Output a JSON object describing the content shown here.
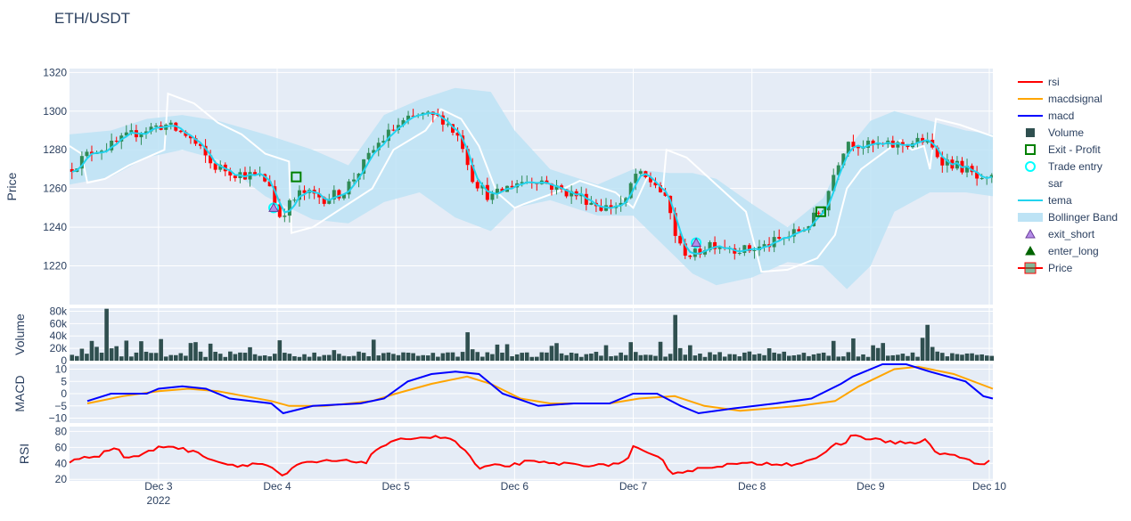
{
  "chart_data": {
    "type": "candlestick",
    "title": "ETH/USDT",
    "x_ticks": [
      "Dec 3",
      "Dec 4",
      "Dec 5",
      "Dec 6",
      "Dec 7",
      "Dec 8",
      "Dec 9",
      "Dec 10"
    ],
    "x_year_label": "2022",
    "x_range_days": [
      2.25,
      10.03
    ],
    "grid": true,
    "legend_position": "right",
    "panels": [
      {
        "key": "price",
        "ylabel": "Price",
        "yrange": [
          1200,
          1322
        ],
        "ticks": [
          1220,
          1240,
          1260,
          1280,
          1300,
          1320
        ],
        "tick_labels": [
          "1220",
          "1240",
          "1260",
          "1280",
          "1300",
          "1320"
        ]
      },
      {
        "key": "volume",
        "ylabel": "Volume",
        "yrange": [
          0,
          85000
        ],
        "ticks": [
          0,
          20000,
          40000,
          60000,
          80000
        ],
        "tick_labels": [
          "0",
          "20k",
          "40k",
          "60k",
          "80k"
        ]
      },
      {
        "key": "macd",
        "ylabel": "MACD",
        "yrange": [
          -12,
          12
        ],
        "ticks": [
          -10,
          -5,
          0,
          5,
          10
        ],
        "tick_labels": [
          "−10",
          "−5",
          "0",
          "5",
          "10"
        ]
      },
      {
        "key": "rsi",
        "ylabel": "RSI",
        "yrange": [
          18,
          86
        ],
        "ticks": [
          20,
          40,
          60,
          80
        ],
        "tick_labels": [
          "20",
          "40",
          "60",
          "80"
        ]
      }
    ],
    "legend": [
      {
        "name": "rsi",
        "color": "#ff0000",
        "symbol": "line"
      },
      {
        "name": "macdsignal",
        "color": "#ffa500",
        "symbol": "line"
      },
      {
        "name": "macd",
        "color": "#0000ff",
        "symbol": "line"
      },
      {
        "name": "Volume",
        "color": "#2f4f4f",
        "symbol": "square"
      },
      {
        "name": "Exit - Profit",
        "color": "#008000",
        "symbol": "square-open"
      },
      {
        "name": "Trade entry",
        "color": "#00ffff",
        "symbol": "circle-open"
      },
      {
        "name": "sar",
        "color": "#ffffff",
        "symbol": "line"
      },
      {
        "name": "tema",
        "color": "#22d3ee",
        "symbol": "line"
      },
      {
        "name": "Bollinger Band",
        "color": "#bde3f5",
        "symbol": "band"
      },
      {
        "name": "exit_short",
        "color": "#9b59b6",
        "symbol": "triangle"
      },
      {
        "name": "enter_long",
        "color": "#006400",
        "symbol": "triangle"
      },
      {
        "name": "Price",
        "color": "#2e8b57",
        "symbol": "candle"
      }
    ],
    "colors": {
      "plot_bg": "#e5ecf6",
      "grid": "#ffffff",
      "up": "#2e8b57",
      "down": "#ff0000",
      "volume": "#2f4f4f",
      "tema": "#22d3ee",
      "sar": "#ffffff",
      "bb": "#bde3f5",
      "macd": "#0000ff",
      "signal": "#ffa500",
      "rsi": "#ff0000"
    },
    "price_path": [
      [
        2.25,
        1270
      ],
      [
        2.45,
        1280
      ],
      [
        2.6,
        1282
      ],
      [
        2.75,
        1287
      ],
      [
        2.85,
        1290
      ],
      [
        3.05,
        1293
      ],
      [
        3.25,
        1287
      ],
      [
        3.35,
        1280
      ],
      [
        3.45,
        1272
      ],
      [
        3.65,
        1268
      ],
      [
        3.85,
        1266
      ],
      [
        3.95,
        1262
      ],
      [
        4.0,
        1245
      ],
      [
        4.05,
        1248
      ],
      [
        4.2,
        1258
      ],
      [
        4.4,
        1255
      ],
      [
        4.55,
        1258
      ],
      [
        4.7,
        1270
      ],
      [
        4.85,
        1283
      ],
      [
        5.0,
        1292
      ],
      [
        5.2,
        1298
      ],
      [
        5.4,
        1296
      ],
      [
        5.55,
        1285
      ],
      [
        5.65,
        1265
      ],
      [
        5.8,
        1255
      ],
      [
        6.0,
        1263
      ],
      [
        6.2,
        1265
      ],
      [
        6.35,
        1260
      ],
      [
        6.55,
        1256
      ],
      [
        6.75,
        1250
      ],
      [
        6.95,
        1253
      ],
      [
        7.0,
        1268
      ],
      [
        7.2,
        1262
      ],
      [
        7.3,
        1250
      ],
      [
        7.38,
        1230
      ],
      [
        7.5,
        1225
      ],
      [
        7.65,
        1232
      ],
      [
        7.8,
        1230
      ],
      [
        7.95,
        1228
      ],
      [
        8.1,
        1230
      ],
      [
        8.3,
        1235
      ],
      [
        8.45,
        1240
      ],
      [
        8.6,
        1250
      ],
      [
        8.7,
        1270
      ],
      [
        8.8,
        1285
      ],
      [
        8.95,
        1282
      ],
      [
        9.15,
        1282
      ],
      [
        9.3,
        1283
      ],
      [
        9.45,
        1285
      ],
      [
        9.6,
        1275
      ],
      [
        9.8,
        1270
      ],
      [
        9.95,
        1262
      ],
      [
        10.03,
        1265
      ]
    ],
    "bb_upper": [
      [
        2.25,
        1288
      ],
      [
        2.6,
        1290
      ],
      [
        2.9,
        1296
      ],
      [
        3.2,
        1298
      ],
      [
        3.5,
        1295
      ],
      [
        3.9,
        1288
      ],
      [
        4.3,
        1280
      ],
      [
        4.6,
        1272
      ],
      [
        4.9,
        1298
      ],
      [
        5.2,
        1306
      ],
      [
        5.5,
        1312
      ],
      [
        5.8,
        1310
      ],
      [
        6.0,
        1290
      ],
      [
        6.3,
        1270
      ],
      [
        6.7,
        1262
      ],
      [
        7.0,
        1270
      ],
      [
        7.3,
        1268
      ],
      [
        7.5,
        1268
      ],
      [
        7.7,
        1265
      ],
      [
        8.0,
        1252
      ],
      [
        8.3,
        1240
      ],
      [
        8.6,
        1255
      ],
      [
        8.8,
        1280
      ],
      [
        9.0,
        1295
      ],
      [
        9.2,
        1300
      ],
      [
        9.5,
        1295
      ],
      [
        9.8,
        1290
      ],
      [
        10.03,
        1288
      ]
    ],
    "bb_lower": [
      [
        2.25,
        1262
      ],
      [
        2.6,
        1266
      ],
      [
        2.9,
        1276
      ],
      [
        3.2,
        1280
      ],
      [
        3.5,
        1275
      ],
      [
        3.9,
        1256
      ],
      [
        4.3,
        1244
      ],
      [
        4.6,
        1242
      ],
      [
        4.9,
        1253
      ],
      [
        5.2,
        1258
      ],
      [
        5.5,
        1245
      ],
      [
        5.8,
        1238
      ],
      [
        6.0,
        1250
      ],
      [
        6.3,
        1254
      ],
      [
        6.7,
        1246
      ],
      [
        7.0,
        1246
      ],
      [
        7.3,
        1228
      ],
      [
        7.5,
        1216
      ],
      [
        7.7,
        1210
      ],
      [
        8.0,
        1214
      ],
      [
        8.3,
        1222
      ],
      [
        8.6,
        1220
      ],
      [
        8.8,
        1208
      ],
      [
        9.0,
        1220
      ],
      [
        9.2,
        1248
      ],
      [
        9.5,
        1258
      ],
      [
        9.8,
        1258
      ],
      [
        10.03,
        1256
      ]
    ],
    "sar": [
      [
        2.25,
        1282
      ],
      [
        2.35,
        1278
      ],
      [
        2.4,
        1263
      ],
      [
        2.55,
        1265
      ],
      [
        2.75,
        1272
      ],
      [
        3.05,
        1280
      ],
      [
        3.08,
        1309
      ],
      [
        3.3,
        1304
      ],
      [
        3.5,
        1294
      ],
      [
        3.7,
        1288
      ],
      [
        3.9,
        1278
      ],
      [
        4.1,
        1274
      ],
      [
        4.12,
        1237
      ],
      [
        4.3,
        1240
      ],
      [
        4.6,
        1252
      ],
      [
        4.8,
        1260
      ],
      [
        4.98,
        1280
      ],
      [
        5.25,
        1290
      ],
      [
        5.38,
        1301
      ],
      [
        5.55,
        1296
      ],
      [
        5.7,
        1282
      ],
      [
        5.85,
        1258
      ],
      [
        6.0,
        1250
      ],
      [
        6.08,
        1252
      ],
      [
        6.35,
        1258
      ],
      [
        6.55,
        1264
      ],
      [
        6.85,
        1258
      ],
      [
        7.0,
        1250
      ],
      [
        7.12,
        1266
      ],
      [
        7.2,
        1262
      ],
      [
        7.25,
        1260
      ],
      [
        7.28,
        1280
      ],
      [
        7.45,
        1276
      ],
      [
        7.7,
        1262
      ],
      [
        7.95,
        1248
      ],
      [
        8.08,
        1217
      ],
      [
        8.3,
        1218
      ],
      [
        8.55,
        1224
      ],
      [
        8.7,
        1236
      ],
      [
        8.8,
        1260
      ],
      [
        8.92,
        1270
      ],
      [
        9.25,
        1285
      ],
      [
        9.35,
        1280
      ],
      [
        9.45,
        1282
      ],
      [
        9.5,
        1270
      ],
      [
        9.55,
        1296
      ],
      [
        9.75,
        1293
      ],
      [
        10.03,
        1287
      ]
    ],
    "buys": [
      [
        3.97,
        1250
      ],
      [
        7.53,
        1232
      ]
    ],
    "sells": [
      [
        4.16,
        1266
      ],
      [
        8.58,
        1248
      ]
    ],
    "macd": [
      [
        2.4,
        -3
      ],
      [
        2.6,
        0
      ],
      [
        2.9,
        0
      ],
      [
        3.0,
        2
      ],
      [
        3.2,
        3
      ],
      [
        3.4,
        2
      ],
      [
        3.6,
        -2
      ],
      [
        3.95,
        -4
      ],
      [
        4.05,
        -8
      ],
      [
        4.3,
        -5
      ],
      [
        4.7,
        -4
      ],
      [
        4.9,
        -2
      ],
      [
        5.1,
        5
      ],
      [
        5.3,
        8
      ],
      [
        5.5,
        9
      ],
      [
        5.7,
        8
      ],
      [
        5.9,
        0
      ],
      [
        6.2,
        -5
      ],
      [
        6.5,
        -4
      ],
      [
        6.8,
        -4
      ],
      [
        7.0,
        0
      ],
      [
        7.2,
        0
      ],
      [
        7.4,
        -5
      ],
      [
        7.55,
        -8
      ],
      [
        7.85,
        -6
      ],
      [
        8.2,
        -4
      ],
      [
        8.5,
        -2
      ],
      [
        8.75,
        4
      ],
      [
        8.85,
        7
      ],
      [
        9.1,
        12
      ],
      [
        9.3,
        12
      ],
      [
        9.5,
        9
      ],
      [
        9.8,
        5
      ],
      [
        9.95,
        -1
      ],
      [
        10.03,
        -2
      ]
    ],
    "macdsignal": [
      [
        2.4,
        -4
      ],
      [
        2.7,
        -1
      ],
      [
        3.0,
        1
      ],
      [
        3.25,
        2
      ],
      [
        3.5,
        1
      ],
      [
        3.95,
        -3
      ],
      [
        4.1,
        -5
      ],
      [
        4.4,
        -5
      ],
      [
        4.8,
        -3
      ],
      [
        5.0,
        0
      ],
      [
        5.3,
        4
      ],
      [
        5.6,
        7
      ],
      [
        5.8,
        4
      ],
      [
        6.05,
        -2
      ],
      [
        6.3,
        -4
      ],
      [
        6.8,
        -4
      ],
      [
        7.05,
        -2
      ],
      [
        7.35,
        -1
      ],
      [
        7.6,
        -5
      ],
      [
        7.9,
        -7
      ],
      [
        8.4,
        -5
      ],
      [
        8.7,
        -3
      ],
      [
        8.9,
        3
      ],
      [
        9.2,
        10
      ],
      [
        9.4,
        11
      ],
      [
        9.7,
        8
      ],
      [
        10.03,
        2
      ]
    ],
    "rsi": [
      [
        2.25,
        40
      ],
      [
        2.35,
        48
      ],
      [
        2.5,
        50
      ],
      [
        2.65,
        62
      ],
      [
        2.7,
        47
      ],
      [
        2.85,
        50
      ],
      [
        3.0,
        60
      ],
      [
        3.1,
        62
      ],
      [
        3.2,
        58
      ],
      [
        3.35,
        52
      ],
      [
        3.5,
        42
      ],
      [
        3.65,
        37
      ],
      [
        3.85,
        40
      ],
      [
        3.95,
        36
      ],
      [
        4.05,
        22
      ],
      [
        4.1,
        30
      ],
      [
        4.2,
        40
      ],
      [
        4.45,
        43
      ],
      [
        4.75,
        42
      ],
      [
        4.85,
        60
      ],
      [
        4.95,
        65
      ],
      [
        5.1,
        72
      ],
      [
        5.3,
        73
      ],
      [
        5.45,
        72
      ],
      [
        5.6,
        54
      ],
      [
        5.7,
        32
      ],
      [
        5.8,
        37
      ],
      [
        5.95,
        37
      ],
      [
        6.1,
        42
      ],
      [
        6.3,
        40
      ],
      [
        6.5,
        39
      ],
      [
        6.75,
        37
      ],
      [
        6.95,
        43
      ],
      [
        7.0,
        60
      ],
      [
        7.15,
        50
      ],
      [
        7.25,
        44
      ],
      [
        7.32,
        28
      ],
      [
        7.45,
        30
      ],
      [
        7.65,
        36
      ],
      [
        7.85,
        39
      ],
      [
        8.15,
        40
      ],
      [
        8.35,
        39
      ],
      [
        8.5,
        45
      ],
      [
        8.6,
        50
      ],
      [
        8.7,
        63
      ],
      [
        8.8,
        66
      ],
      [
        8.85,
        77
      ],
      [
        8.95,
        72
      ],
      [
        9.15,
        67
      ],
      [
        9.4,
        65
      ],
      [
        9.45,
        70
      ],
      [
        9.55,
        54
      ],
      [
        9.75,
        48
      ],
      [
        9.9,
        39
      ],
      [
        10.03,
        43
      ]
    ]
  }
}
